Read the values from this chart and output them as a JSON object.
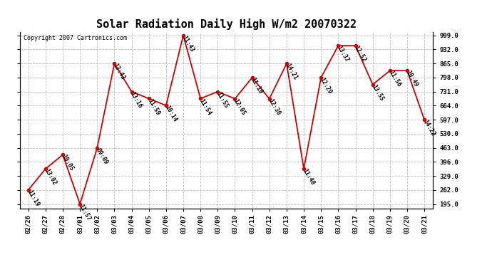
{
  "title": "Solar Radiation Daily High W/m2 20070322",
  "copyright": "Copyright 2007 Cartronics.com",
  "dates": [
    "02/26",
    "02/27",
    "02/28",
    "03/01",
    "03/02",
    "03/03",
    "03/04",
    "03/05",
    "03/06",
    "03/07",
    "03/08",
    "03/09",
    "03/10",
    "03/11",
    "03/12",
    "03/13",
    "03/14",
    "03/15",
    "03/16",
    "03/17",
    "03/18",
    "03/19",
    "03/20",
    "03/21"
  ],
  "values": [
    262,
    363,
    430,
    195,
    463,
    865,
    731,
    698,
    665,
    999,
    698,
    731,
    697,
    798,
    697,
    865,
    363,
    798,
    950,
    950,
    765,
    831,
    831,
    597
  ],
  "labels": [
    "11:19",
    "13:02",
    "10:05",
    "11:57",
    "09:09",
    "13:43",
    "13:16",
    "11:59",
    "10:14",
    "11:43",
    "11:54",
    "11:55",
    "12:05",
    "11:10",
    "12:30",
    "14:21",
    "11:40",
    "12:29",
    "13:37",
    "12:52",
    "13:55",
    "11:56",
    "10:49",
    "14:22"
  ],
  "line_color": "#cc0000",
  "marker_color": "#cc0000",
  "bg_color": "#ffffff",
  "grid_color": "#bbbbbb",
  "ylim_min": 175.0,
  "ylim_max": 1015.0,
  "ytick_values": [
    195.0,
    262.0,
    329.0,
    396.0,
    463.0,
    530.0,
    597.0,
    664.0,
    731.0,
    798.0,
    865.0,
    932.0,
    999.0
  ],
  "title_fontsize": 11,
  "label_fontsize": 6.0,
  "tick_fontsize": 6.5,
  "copyright_fontsize": 6
}
